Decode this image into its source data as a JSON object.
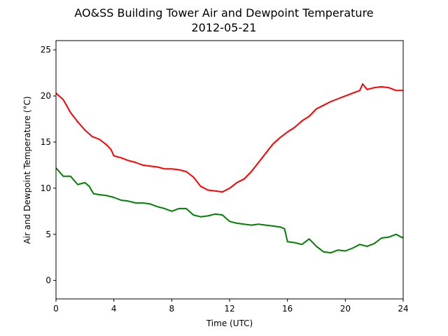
{
  "chart_data": {
    "type": "line",
    "title": "AO&SS Building Tower Air and Dewpoint Temperature",
    "subtitle": "2012-05-21",
    "xlabel": "Time (UTC)",
    "ylabel": "Air and Dewpoint Temperature (°C)",
    "xlim": [
      0,
      24
    ],
    "ylim": [
      -2,
      26
    ],
    "xticks": [
      0,
      4,
      8,
      12,
      16,
      20,
      24
    ],
    "yticks": [
      0,
      5,
      10,
      15,
      20,
      25
    ],
    "grid": false,
    "series": [
      {
        "color": "#ff0000",
        "x": [
          0,
          0.5,
          1,
          1.5,
          2,
          2.5,
          3,
          3.5,
          3.8,
          4,
          4.5,
          5,
          5.5,
          6,
          6.5,
          7,
          7.5,
          8,
          8.5,
          9,
          9.5,
          10,
          10.5,
          11,
          11.5,
          12,
          12.5,
          13,
          13.5,
          14,
          14.5,
          15,
          15.5,
          16,
          16.5,
          17,
          17.5,
          18,
          18.5,
          19,
          19.5,
          20,
          20.5,
          21,
          21.2,
          21.5,
          22,
          22.5,
          23,
          23.5,
          24
        ],
        "y": [
          20.3,
          19.6,
          18.2,
          17.2,
          16.3,
          15.6,
          15.3,
          14.7,
          14.2,
          13.5,
          13.3,
          13.0,
          12.8,
          12.5,
          12.4,
          12.3,
          12.1,
          12.1,
          12.0,
          11.8,
          11.2,
          10.2,
          9.8,
          9.7,
          9.6,
          10.0,
          10.6,
          11.0,
          11.8,
          12.8,
          13.8,
          14.8,
          15.5,
          16.1,
          16.6,
          17.3,
          17.8,
          18.6,
          19.0,
          19.4,
          19.7,
          20.0,
          20.3,
          20.6,
          21.3,
          20.7,
          20.9,
          21.0,
          20.9,
          20.6,
          20.6
        ]
      },
      {
        "color": "#008000",
        "x": [
          0,
          0.5,
          1,
          1.5,
          2,
          2.3,
          2.6,
          3,
          3.5,
          4,
          4.5,
          5,
          5.5,
          6,
          6.5,
          7,
          7.5,
          8,
          8.5,
          9,
          9.5,
          10,
          10.5,
          11,
          11.5,
          12,
          12.5,
          13,
          13.5,
          14,
          14.5,
          15,
          15.5,
          15.8,
          16,
          16.5,
          17,
          17.5,
          18,
          18.5,
          19,
          19.5,
          20,
          20.5,
          21,
          21.5,
          22,
          22.5,
          23,
          23.5,
          24
        ],
        "y": [
          12.2,
          11.3,
          11.3,
          10.4,
          10.6,
          10.2,
          9.4,
          9.3,
          9.2,
          9.0,
          8.7,
          8.6,
          8.4,
          8.4,
          8.3,
          8.0,
          7.8,
          7.5,
          7.8,
          7.8,
          7.1,
          6.9,
          7.0,
          7.2,
          7.1,
          6.4,
          6.2,
          6.1,
          6.0,
          6.1,
          6.0,
          5.9,
          5.8,
          5.6,
          4.2,
          4.1,
          3.9,
          4.5,
          3.7,
          3.1,
          3.0,
          3.3,
          3.2,
          3.5,
          3.9,
          3.7,
          4.0,
          4.6,
          4.7,
          5.0,
          4.6
        ]
      }
    ]
  }
}
